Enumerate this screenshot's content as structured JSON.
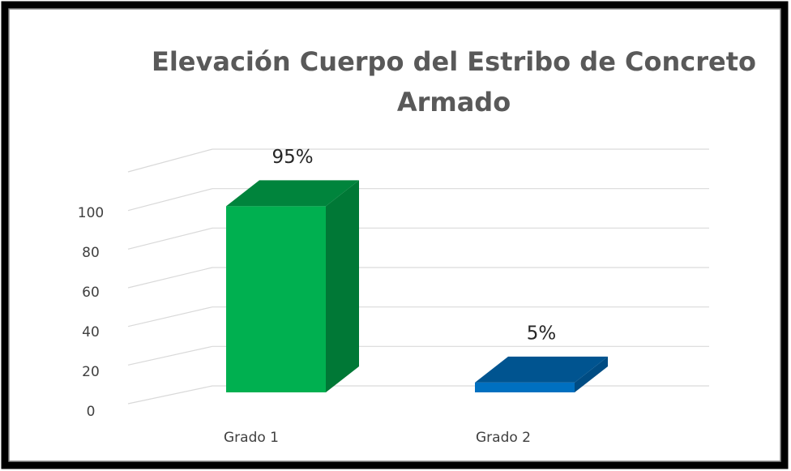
{
  "chart_data": {
    "type": "bar3d",
    "title": "Elevación Cuerpo del Estribo de Concreto Armado",
    "categories": [
      "Grado 1",
      "Grado 2"
    ],
    "values": [
      95,
      5
    ],
    "value_labels": [
      "95%",
      "5%"
    ],
    "colors": [
      "#00b050",
      "#0070c0"
    ],
    "ylim": [
      0,
      120
    ],
    "yticks": [
      0,
      20,
      40,
      60,
      80,
      100
    ],
    "grid": true
  }
}
